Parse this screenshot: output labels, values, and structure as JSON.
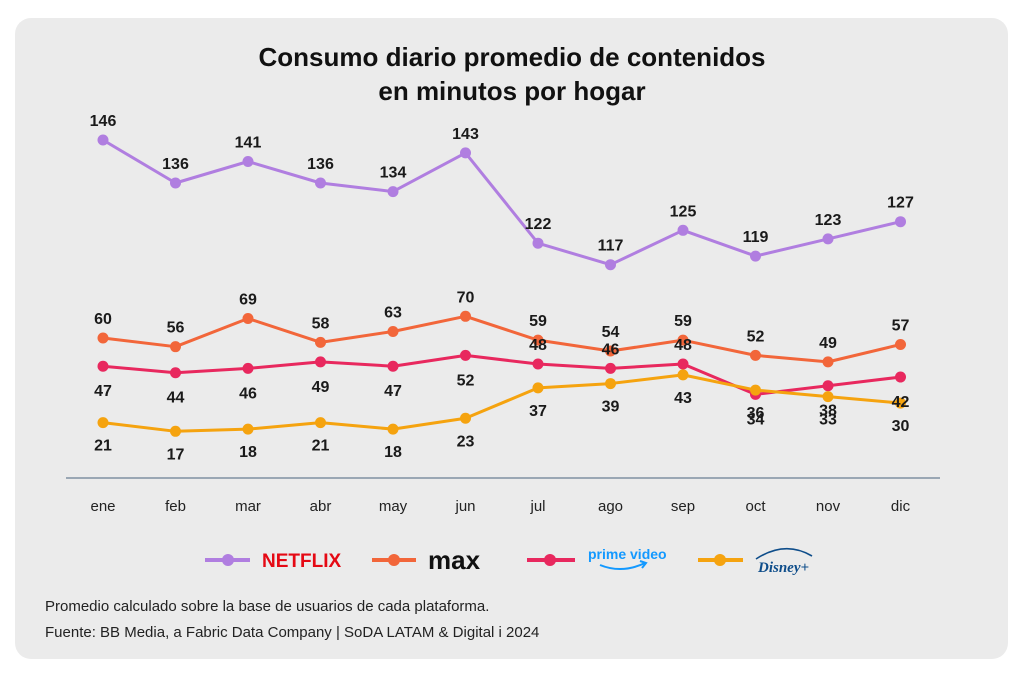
{
  "chart_data": {
    "type": "line",
    "title": [
      "Consumo diario promedio de contenidos",
      "en minutos por hogar"
    ],
    "categories": [
      "ene",
      "feb",
      "mar",
      "abr",
      "may",
      "jun",
      "jul",
      "ago",
      "sep",
      "oct",
      "nov",
      "dic"
    ],
    "series": [
      {
        "name": "NETFLIX",
        "color": "#b07ee0",
        "values": [
          146,
          136,
          141,
          136,
          134,
          143,
          122,
          117,
          125,
          119,
          123,
          127
        ]
      },
      {
        "name": "max",
        "color": "#f2663a",
        "values": [
          60,
          56,
          69,
          58,
          63,
          70,
          59,
          54,
          59,
          52,
          49,
          57
        ]
      },
      {
        "name": "prime video",
        "color": "#e8285e",
        "values": [
          47,
          44,
          46,
          49,
          47,
          52,
          48,
          46,
          48,
          34,
          38,
          42
        ]
      },
      {
        "name": "Disney+",
        "color": "#f5a30f",
        "values": [
          21,
          17,
          18,
          21,
          18,
          23,
          37,
          39,
          43,
          36,
          33,
          30
        ]
      }
    ],
    "grid": false,
    "legend_position": "bottom"
  },
  "footnotes": [
    "Promedio calculado sobre la base de usuarios de cada plataforma.",
    "Fuente: BB Media, a Fabric Data Company | SoDA LATAM & Digital i 2024"
  ]
}
